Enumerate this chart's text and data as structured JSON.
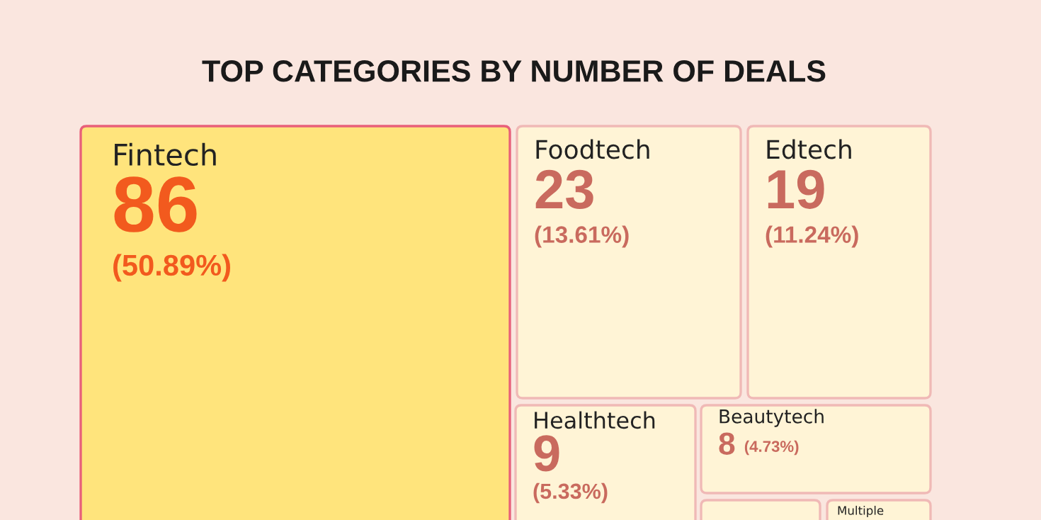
{
  "chart_data": {
    "type": "other",
    "title": "TOP CATEGORIES BY NUMBER OF DEALS",
    "categories": [
      "Fintech",
      "Foodtech",
      "Edtech",
      "Healthtech",
      "Beautytech",
      null,
      "Multiple"
    ],
    "values": [
      86,
      23,
      19,
      9,
      8,
      null,
      null
    ],
    "data_labels": true,
    "annotations": [
      "(50.89%)",
      "(13.61%)",
      "(11.24%)",
      "(5.33%)",
      "(4.73%)",
      null,
      null
    ],
    "colors": [
      "#ffe47c",
      "#fff4d6",
      "#fff4d6",
      "#fff4d6",
      "#fff4d6",
      "#fff4d6",
      "#fff4d6"
    ]
  }
}
